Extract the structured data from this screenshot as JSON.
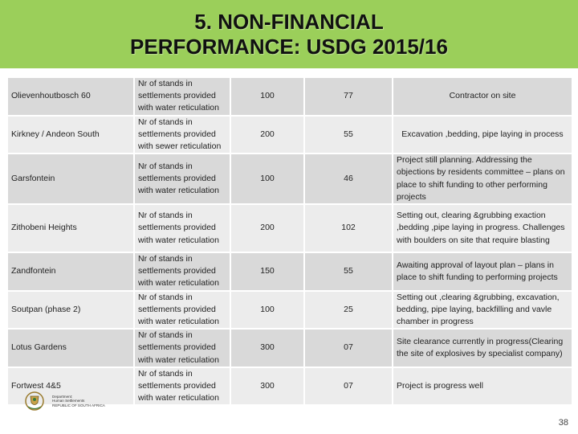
{
  "title": {
    "line1": "5. NON-FINANCIAL",
    "line2": "PERFORMANCE:  USDG 2015/16"
  },
  "table": {
    "rows": [
      {
        "name": "Olievenhoutbosch 60",
        "description": "Nr of stands in settlements provided with water reticulation",
        "target": "100",
        "actual": "77",
        "status": "Contractor on site"
      },
      {
        "name": "Kirkney / Andeon South",
        "description": "Nr of stands in settlements provided with sewer reticulation",
        "target": "200",
        "actual": "55",
        "status": "Excavation ,bedding, pipe laying in process"
      },
      {
        "name": "Garsfontein",
        "description": "Nr of stands in settlements provided with water reticulation",
        "target": "100",
        "actual": "46",
        "status": "Project still planning. Addressing the objections by residents committee – plans on place to shift  funding to other performing projects"
      },
      {
        "name": "Zithobeni Heights",
        "description": "Nr of stands in settlements provided with water reticulation",
        "target": "200",
        "actual": "102",
        "status": "Setting out, clearing &grubbing exaction ,bedding ,pipe laying in progress. Challenges with boulders on site that require blasting"
      },
      {
        "name": "Zandfontein",
        "description": "Nr of stands in settlements provided with water reticulation",
        "target": "150",
        "actual": "55",
        "status": "Awaiting approval of layout plan – plans in place to shift funding to performing projects"
      },
      {
        "name": "Soutpan (phase 2)",
        "description": "Nr of stands in settlements provided with water reticulation",
        "target": "100",
        "actual": "25",
        "status": "Setting out ,clearing &grubbing, excavation, bedding, pipe laying, backfilling and vavle chamber in progress"
      },
      {
        "name": "Lotus Gardens",
        "description": "Nr of stands in settlements provided with water reticulation",
        "target": "300",
        "actual": "07",
        "status": "Site clearance currently in progress(Clearing the site of explosives by specialist company)"
      },
      {
        "name": "Fortwest 4&5",
        "description": "Nr of stands in settlements provided with water reticulation",
        "target": "300",
        "actual": "07",
        "status": "Project is progress well"
      }
    ]
  },
  "logo": {
    "line1": "Department:",
    "line2": "Human Settlements",
    "line3": "REPUBLIC OF SOUTH AFRICA"
  },
  "page_number": "38",
  "colors": {
    "title_bar": "#9bcf5a",
    "row_dark": "#d9d9d9",
    "row_light": "#ececec"
  }
}
